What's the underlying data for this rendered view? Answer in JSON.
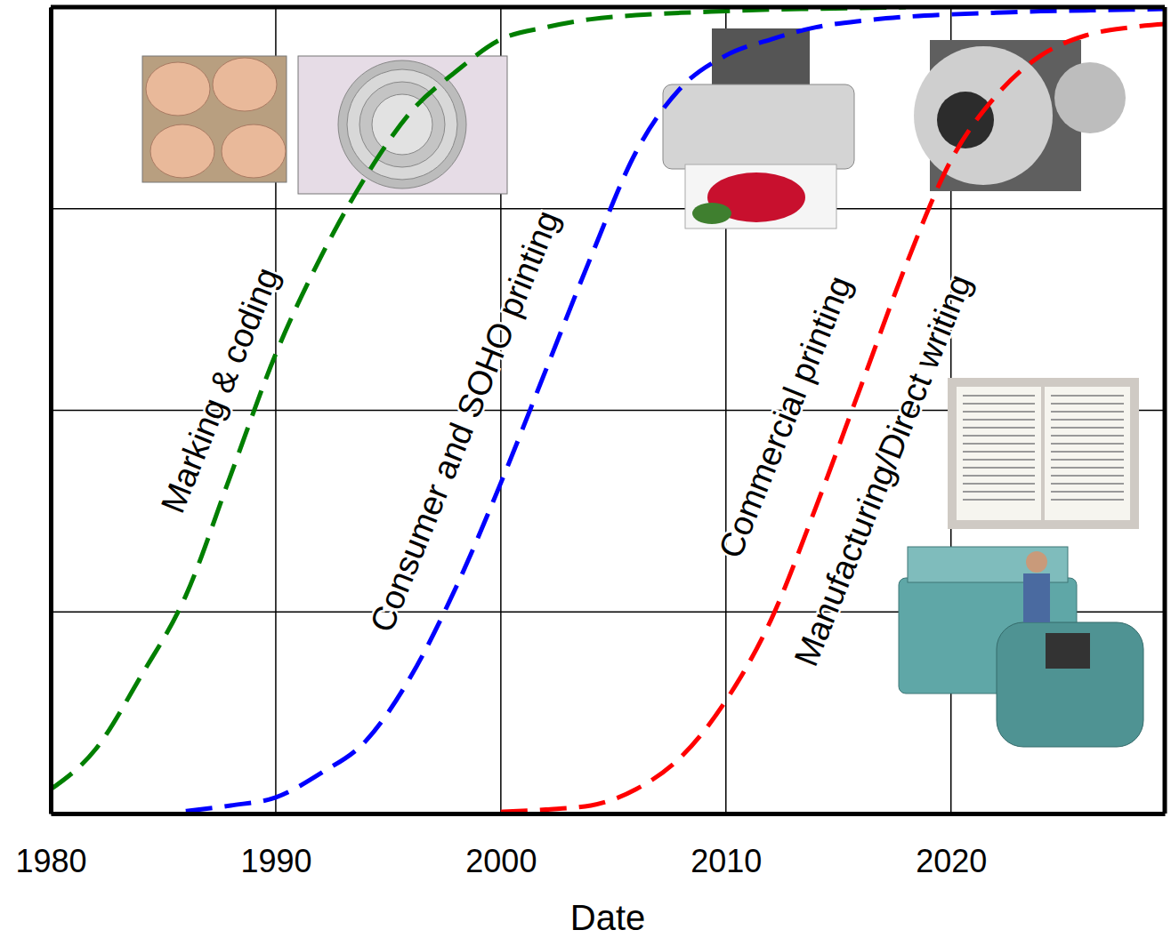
{
  "chart_data": {
    "type": "line",
    "x": [
      1980,
      1982,
      1984,
      1986,
      1988,
      1990,
      1992,
      1994,
      1996,
      1998,
      2000,
      2002,
      2004,
      2006,
      2008,
      2010,
      2012,
      2014,
      2016,
      2018,
      2020,
      2022,
      2024,
      2026,
      2028,
      2030
    ],
    "xlim": [
      1980,
      2029.5
    ],
    "xticks": [
      1980,
      1990,
      2000,
      2010,
      2020
    ],
    "ylim": [
      0,
      100
    ],
    "yticks": [
      0,
      25,
      50,
      75,
      100
    ],
    "grid": true,
    "tick_labels": "x",
    "x_label": "Date",
    "series": [
      {
        "color": "#007f00",
        "line_style": "dashed",
        "values": [
          3,
          8,
          17,
          27,
          42,
          57,
          69,
          79,
          87,
          92,
          96,
          97.5,
          98.5,
          99,
          99.3,
          99.5,
          99.7,
          99.8,
          99.9,
          100,
          null,
          null,
          null,
          null,
          null,
          null
        ]
      },
      {
        "color": "#0000ff",
        "line_style": "dashed",
        "values": [
          null,
          null,
          null,
          0.3,
          1,
          2,
          5,
          9,
          17,
          28,
          41,
          55,
          69,
          82,
          90,
          94,
          96,
          97.5,
          98.3,
          98.8,
          99.1,
          99.3,
          99.5,
          99.6,
          99.7,
          99.8
        ]
      },
      {
        "color": "#ff0000",
        "line_style": "dashed",
        "values": [
          null,
          null,
          null,
          null,
          null,
          null,
          null,
          null,
          null,
          null,
          0.2,
          0.5,
          1,
          3,
          7,
          14,
          24,
          38,
          53,
          68,
          81,
          89,
          94,
          96.5,
          97.5,
          98
        ]
      }
    ],
    "annotations": [
      "Marking & coding",
      "Consumer and SOHO printing",
      "Commercial printing",
      "Manufacturing/Direct writing"
    ]
  }
}
